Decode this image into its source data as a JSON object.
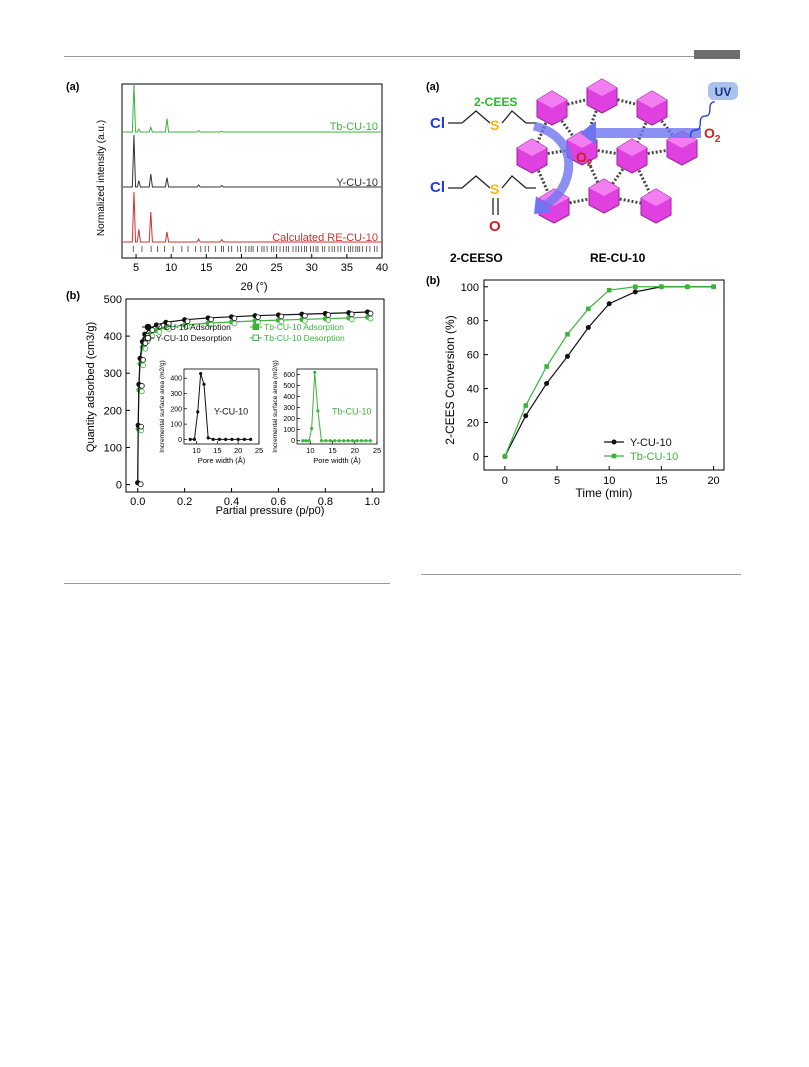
{
  "header": {
    "accent_color": "#6d6d6d"
  },
  "left": {
    "panel_a": {
      "label": "(a)",
      "chart_data": {
        "type": "line",
        "xlabel": "2θ (°)",
        "ylabel": "Normalized intensity (a.u.)",
        "xlim": [
          3,
          40
        ],
        "x_ticks": [
          "5",
          "10",
          "15",
          "20",
          "25",
          "30",
          "35",
          "40"
        ],
        "peaks": [
          4.7,
          5.4,
          7.1,
          9.4,
          13.9,
          17.2
        ],
        "series": [
          {
            "name": "Tb-CU-10",
            "color": "#3db33d",
            "rel_heights": [
              1.0,
              0.06,
              0.1,
              0.28,
              0.03,
              0.02
            ]
          },
          {
            "name": "Y-CU-10",
            "color": "#333333",
            "rel_heights": [
              1.0,
              0.12,
              0.25,
              0.18,
              0.04,
              0.03
            ]
          },
          {
            "name": "Calculated RE-CU-10",
            "color": "#cc3333",
            "rel_heights": [
              1.0,
              0.25,
              0.6,
              0.2,
              0.06,
              0.05
            ]
          }
        ]
      }
    },
    "panel_b": {
      "label": "(b)",
      "chart_data": {
        "type": "line",
        "xlabel": "Partial pressure (p/p0)",
        "ylabel": "Quantity adsorbed (cm3/g)",
        "xlim": [
          -0.05,
          1.05
        ],
        "ylim": [
          -20,
          500
        ],
        "x_ticks": [
          "0.0",
          "0.2",
          "0.4",
          "0.6",
          "0.8",
          "1.0"
        ],
        "y_ticks": [
          "0",
          "100",
          "200",
          "300",
          "400",
          "500"
        ],
        "legend": [
          "Y-CU-10 Adsorption",
          "Y-CU-10 Desorption",
          "Tb-CU-10 Adsorption",
          "Tb-CU-10 Desorption"
        ],
        "series": [
          {
            "name": "Y-CU-10",
            "color": "#111111",
            "x": [
              0.0,
              0.002,
              0.005,
              0.01,
              0.02,
              0.03,
              0.05,
              0.08,
              0.12,
              0.2,
              0.3,
              0.4,
              0.5,
              0.6,
              0.7,
              0.8,
              0.9,
              0.98
            ],
            "y": [
              5,
              160,
              270,
              340,
              385,
              405,
              420,
              430,
              437,
              444,
              449,
              452,
              455,
              457,
              459,
              461,
              463,
              465
            ]
          },
          {
            "name": "Tb-CU-10",
            "color": "#3db33d",
            "x": [
              0.0,
              0.002,
              0.005,
              0.01,
              0.02,
              0.03,
              0.05,
              0.08,
              0.12,
              0.2,
              0.3,
              0.4,
              0.5,
              0.6,
              0.7,
              0.8,
              0.9,
              0.98
            ],
            "y": [
              5,
              150,
              255,
              325,
              370,
              390,
              405,
              415,
              423,
              430,
              435,
              438,
              441,
              443,
              445,
              447,
              449,
              451
            ]
          }
        ]
      },
      "inset_y": {
        "name": "Y-CU-10",
        "ylabel": "Incremental surface area (m2/g)",
        "xlabel": "Pore width (Å)",
        "x_ticks": [
          "10",
          "15",
          "20",
          "25"
        ],
        "y_ticks": [
          "0",
          "100",
          "200",
          "300",
          "400"
        ],
        "x": [
          8.5,
          9.5,
          10.3,
          11.0,
          11.8,
          12.8,
          14,
          15.5,
          17,
          18.5,
          20,
          21.5,
          23
        ],
        "y": [
          0,
          0,
          180,
          430,
          360,
          10,
          0,
          0,
          0,
          0,
          0,
          0,
          0
        ]
      },
      "inset_tb": {
        "name": "Tb-CU-10",
        "ylabel": "Incremental surface area (m2/g)",
        "xlabel": "Pore width (Å)",
        "x_ticks": [
          "10",
          "15",
          "20",
          "25"
        ],
        "y_ticks": [
          "0",
          "100",
          "200",
          "300",
          "400",
          "500",
          "600"
        ],
        "x": [
          8.3,
          9.0,
          9.7,
          10.3,
          11.0,
          11.7,
          12.5,
          13.5,
          14.5,
          15.5,
          16.5,
          17.5,
          18.5,
          19.5,
          20.5,
          21.5,
          22.5,
          23.5
        ],
        "y": [
          0,
          0,
          0,
          110,
          620,
          270,
          0,
          0,
          0,
          0,
          0,
          0,
          0,
          0,
          0,
          0,
          0,
          0
        ]
      }
    }
  },
  "right": {
    "panel_a": {
      "label": "(a)",
      "reactant_label": "2-CEES",
      "product_label": "2-CEESO",
      "framework_label": "RE-CU-10",
      "uv_label": "UV",
      "oxygen_label": "O",
      "oxygen_sub": "2",
      "cl": "Cl",
      "s": "S",
      "o": "O",
      "colors": {
        "green": "#2eb82e",
        "blue": "#1a3fd6",
        "yellow": "#f5b800",
        "red": "#cc2222",
        "magenta": "#e040e0"
      }
    },
    "panel_b": {
      "label": "(b)",
      "chart_data": {
        "type": "line",
        "xlabel": "Time (min)",
        "ylabel": "2-CEES Conversion (%)",
        "xlim": [
          -2,
          21
        ],
        "ylim": [
          -8,
          104
        ],
        "x_ticks": [
          "0",
          "5",
          "10",
          "15",
          "20"
        ],
        "y_ticks": [
          "0",
          "20",
          "40",
          "60",
          "80",
          "100"
        ],
        "legend_position": "bottom-right",
        "series": [
          {
            "name": "Y-CU-10",
            "color": "#111111",
            "x": [
              0,
              2,
              4,
              6,
              8,
              10,
              12.5,
              15,
              17.5,
              20
            ],
            "y": [
              0,
              24,
              43,
              59,
              76,
              90,
              97,
              100,
              100,
              100
            ]
          },
          {
            "name": "Tb-CU-10",
            "color": "#3db33d",
            "x": [
              0,
              2,
              4,
              6,
              8,
              10,
              12.5,
              15,
              17.5,
              20
            ],
            "y": [
              0,
              30,
              53,
              72,
              87,
              98,
              100,
              100,
              100,
              100
            ]
          }
        ]
      }
    }
  }
}
